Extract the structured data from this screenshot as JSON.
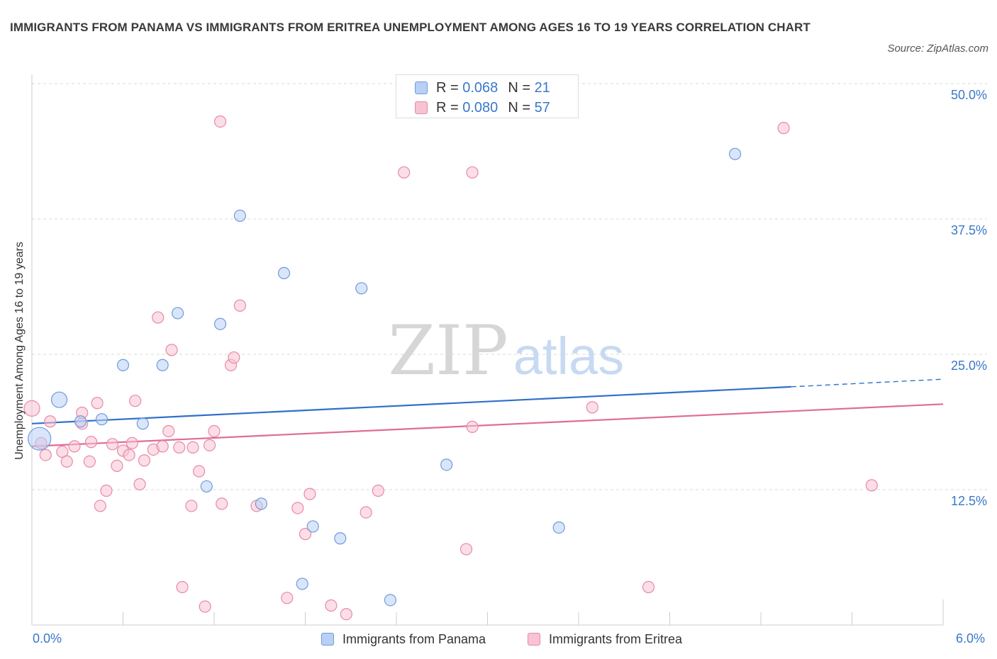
{
  "title": "IMMIGRANTS FROM PANAMA VS IMMIGRANTS FROM ERITREA UNEMPLOYMENT AMONG AGES 16 TO 19 YEARS CORRELATION CHART",
  "source": "Source: ZipAtlas.com",
  "watermark": {
    "zip": "ZIP",
    "atlas": "atlas"
  },
  "legend": {
    "rows": [
      {
        "r_label": "R =",
        "r_value": "0.068",
        "n_label": "N =",
        "n_value": "21"
      },
      {
        "r_label": "R =",
        "r_value": "0.080",
        "n_label": "N =",
        "n_value": "57"
      }
    ]
  },
  "colors": {
    "panama_fill": "#b8d0f5",
    "panama_stroke": "#6f9bd8",
    "panama_line": "#2f6fca",
    "eritrea_fill": "#f8c3d2",
    "eritrea_stroke": "#e889a8",
    "eritrea_line": "#e06b96",
    "tick_label": "#3a78c9",
    "grid": "#d9d9d9"
  },
  "chart_data": {
    "type": "scatter",
    "ylabel": "Unemployment Among Ages 16 to 19 years",
    "xlabel": "",
    "x_tick_labels": [
      "0.0%",
      "6.0%"
    ],
    "y_tick_labels": [
      "12.5%",
      "25.0%",
      "37.5%",
      "50.0%"
    ],
    "xlim": [
      0,
      6
    ],
    "ylim": [
      0,
      50
    ],
    "y_ticks": [
      12.5,
      25,
      37.5,
      50
    ],
    "grid": "horizontal dashed",
    "legend_position": "bottom-center",
    "series": [
      {
        "name": "Immigrants from Panama",
        "points": [
          [
            0.05,
            17.2
          ],
          [
            0.18,
            20.8
          ],
          [
            0.32,
            18.8
          ],
          [
            0.46,
            19.0
          ],
          [
            0.6,
            24.0
          ],
          [
            0.73,
            18.6
          ],
          [
            0.86,
            24.0
          ],
          [
            0.96,
            28.8
          ],
          [
            1.24,
            27.8
          ],
          [
            1.15,
            12.8
          ],
          [
            1.37,
            37.8
          ],
          [
            1.51,
            11.2
          ],
          [
            1.66,
            32.5
          ],
          [
            1.78,
            3.8
          ],
          [
            1.85,
            9.1
          ],
          [
            2.03,
            8.0
          ],
          [
            2.17,
            31.1
          ],
          [
            2.36,
            2.3
          ],
          [
            2.73,
            14.8
          ],
          [
            3.47,
            9.0
          ],
          [
            4.63,
            43.5
          ]
        ],
        "sizes": [
          3,
          2,
          1,
          1,
          1,
          1,
          1,
          1,
          1,
          1,
          1,
          1,
          1,
          1,
          1,
          1,
          1,
          1,
          1,
          1,
          1
        ]
      },
      {
        "name": "Immigrants from Eritrea",
        "points": [
          [
            0.0,
            20.0
          ],
          [
            0.06,
            16.8
          ],
          [
            0.09,
            15.7
          ],
          [
            0.12,
            18.8
          ],
          [
            0.2,
            16.0
          ],
          [
            0.23,
            15.1
          ],
          [
            0.28,
            16.5
          ],
          [
            0.33,
            18.6
          ],
          [
            0.38,
            15.1
          ],
          [
            0.39,
            16.9
          ],
          [
            0.43,
            20.5
          ],
          [
            0.45,
            11.0
          ],
          [
            0.49,
            12.4
          ],
          [
            0.53,
            16.7
          ],
          [
            0.56,
            14.7
          ],
          [
            0.6,
            16.1
          ],
          [
            0.64,
            15.7
          ],
          [
            0.66,
            16.8
          ],
          [
            0.68,
            20.7
          ],
          [
            0.71,
            13.0
          ],
          [
            0.74,
            15.2
          ],
          [
            0.8,
            16.2
          ],
          [
            0.83,
            28.4
          ],
          [
            0.86,
            16.5
          ],
          [
            0.9,
            17.9
          ],
          [
            0.92,
            25.4
          ],
          [
            0.97,
            16.4
          ],
          [
            0.99,
            3.5
          ],
          [
            1.06,
            16.4
          ],
          [
            1.05,
            11.0
          ],
          [
            1.1,
            14.2
          ],
          [
            1.14,
            1.7
          ],
          [
            1.17,
            16.6
          ],
          [
            1.2,
            17.9
          ],
          [
            1.25,
            11.2
          ],
          [
            1.31,
            24.0
          ],
          [
            1.33,
            24.7
          ],
          [
            1.37,
            29.5
          ],
          [
            1.48,
            11.0
          ],
          [
            1.68,
            2.5
          ],
          [
            1.75,
            10.8
          ],
          [
            1.83,
            12.1
          ],
          [
            1.97,
            1.8
          ],
          [
            2.07,
            1.0
          ],
          [
            2.2,
            10.4
          ],
          [
            2.28,
            12.4
          ],
          [
            2.45,
            41.8
          ],
          [
            2.86,
            7.0
          ],
          [
            2.9,
            41.8
          ],
          [
            2.9,
            18.3
          ],
          [
            3.69,
            20.1
          ],
          [
            4.06,
            3.5
          ],
          [
            4.95,
            45.9
          ],
          [
            5.53,
            12.9
          ],
          [
            1.24,
            46.5
          ],
          [
            0.33,
            19.6
          ],
          [
            1.8,
            8.4
          ]
        ],
        "sizes": [
          2,
          1,
          1,
          1,
          1,
          1,
          1,
          1,
          1,
          1,
          1,
          1,
          1,
          1,
          1,
          1,
          1,
          1,
          1,
          1,
          1,
          1,
          1,
          1,
          1,
          1,
          1,
          1,
          1,
          1,
          1,
          1,
          1,
          1,
          1,
          1,
          1,
          1,
          1,
          1,
          1,
          1,
          1,
          1,
          1,
          1,
          1,
          1,
          1,
          1,
          1,
          1,
          1,
          1,
          1,
          1,
          1
        ]
      }
    ],
    "trend_lines": [
      {
        "name": "Immigrants from Panama",
        "x0": 0.0,
        "y0": 18.6,
        "x1": 5.0,
        "y1": 22.0,
        "dashed_to": 6.0,
        "dashed_y": 22.7
      },
      {
        "name": "Immigrants from Eritrea",
        "x0": 0.0,
        "y0": 16.5,
        "x1": 6.0,
        "y1": 20.4
      }
    ]
  }
}
